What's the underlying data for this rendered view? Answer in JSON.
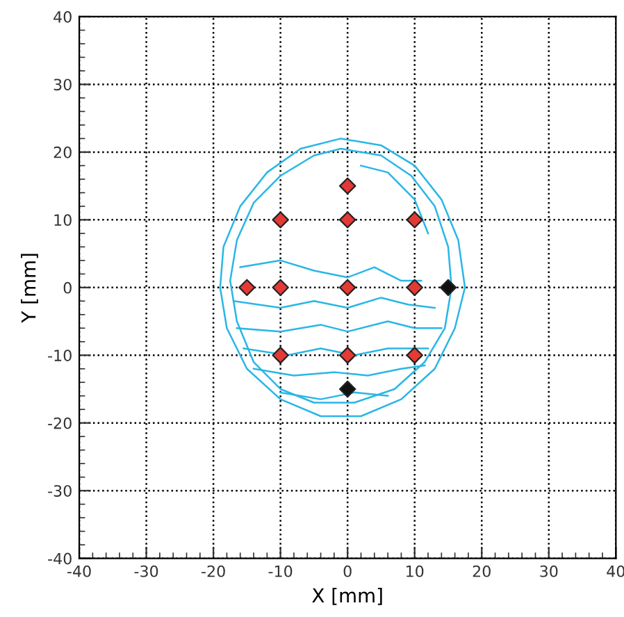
{
  "chart_data": {
    "type": "scatter",
    "xlabel": "X [mm]",
    "ylabel": "Y [mm]",
    "xlim": [
      -40,
      40
    ],
    "ylim": [
      -40,
      40
    ],
    "xticks": [
      -40,
      {
        "value": -38,
        "label": null
      },
      {
        "value": -36,
        "label": null
      },
      {
        "value": -34,
        "label": null
      },
      {
        "value": -32,
        "label": null
      },
      -30,
      {
        "value": -28,
        "label": null
      },
      {
        "value": -26,
        "label": null
      },
      {
        "value": -24,
        "label": null
      },
      {
        "value": -22,
        "label": null
      },
      -20,
      {
        "value": -18,
        "label": null
      },
      {
        "value": -16,
        "label": null
      },
      {
        "value": -14,
        "label": null
      },
      {
        "value": -12,
        "label": null
      },
      -10,
      {
        "value": -8,
        "label": null
      },
      {
        "value": -6,
        "label": null
      },
      {
        "value": -4,
        "label": null
      },
      {
        "value": -2,
        "label": null
      },
      0,
      {
        "value": 2,
        "label": null
      },
      {
        "value": 4,
        "label": null
      },
      {
        "value": 6,
        "label": null
      },
      {
        "value": 8,
        "label": null
      },
      10,
      {
        "value": 12,
        "label": null
      },
      {
        "value": 14,
        "label": null
      },
      {
        "value": 16,
        "label": null
      },
      {
        "value": 18,
        "label": null
      },
      20,
      {
        "value": 22,
        "label": null
      },
      {
        "value": 24,
        "label": null
      },
      {
        "value": 26,
        "label": null
      },
      {
        "value": 28,
        "label": null
      },
      30,
      {
        "value": 32,
        "label": null
      },
      {
        "value": 34,
        "label": null
      },
      {
        "value": 36,
        "label": null
      },
      {
        "value": 38,
        "label": null
      },
      40
    ],
    "yticks": [
      -40,
      {
        "value": -38,
        "label": null
      },
      {
        "value": -36,
        "label": null
      },
      {
        "value": -34,
        "label": null
      },
      {
        "value": -32,
        "label": null
      },
      -30,
      {
        "value": -28,
        "label": null
      },
      {
        "value": -26,
        "label": null
      },
      {
        "value": -24,
        "label": null
      },
      {
        "value": -22,
        "label": null
      },
      -20,
      {
        "value": -18,
        "label": null
      },
      {
        "value": -16,
        "label": null
      },
      {
        "value": -14,
        "label": null
      },
      {
        "value": -12,
        "label": null
      },
      -10,
      {
        "value": -8,
        "label": null
      },
      {
        "value": -6,
        "label": null
      },
      {
        "value": -4,
        "label": null
      },
      {
        "value": -2,
        "label": null
      },
      0,
      {
        "value": 2,
        "label": null
      },
      {
        "value": 4,
        "label": null
      },
      {
        "value": 6,
        "label": null
      },
      {
        "value": 8,
        "label": null
      },
      10,
      {
        "value": 12,
        "label": null
      },
      {
        "value": 14,
        "label": null
      },
      {
        "value": 16,
        "label": null
      },
      {
        "value": 18,
        "label": null
      },
      20,
      {
        "value": 22,
        "label": null
      },
      {
        "value": 24,
        "label": null
      },
      {
        "value": 26,
        "label": null
      },
      {
        "value": 28,
        "label": null
      },
      30,
      {
        "value": 32,
        "label": null
      },
      {
        "value": 34,
        "label": null
      },
      {
        "value": 36,
        "label": null
      },
      {
        "value": 38,
        "label": null
      },
      40
    ],
    "grid": true,
    "marker": "diamond",
    "series": [
      {
        "type": "line",
        "color": "#29b6e6",
        "marker": "none",
        "x": [
          -17,
          -10,
          -5,
          0,
          5,
          9,
          13
        ],
        "values": [
          -2,
          -3,
          -2,
          -3,
          -1.5,
          -2.5,
          -3
        ]
      },
      {
        "type": "line",
        "color": "#29b6e6",
        "marker": "none",
        "x": [
          -16.5,
          -10,
          -4,
          0,
          6,
          10,
          14
        ],
        "values": [
          -6,
          -6.5,
          -5.5,
          -6.5,
          -5,
          -6,
          -6
        ]
      },
      {
        "type": "line",
        "color": "#29b6e6",
        "marker": "none",
        "x": [
          -15.5,
          -9,
          -4,
          1,
          6,
          12
        ],
        "values": [
          -9,
          -10,
          -9,
          -10,
          -9,
          -9
        ]
      },
      {
        "type": "line",
        "color": "#29b6e6",
        "marker": "none",
        "x": [
          -14,
          -8,
          -2,
          3,
          8,
          11.5
        ],
        "values": [
          -12,
          -13,
          -12.5,
          -13,
          -12,
          -11.5
        ]
      },
      {
        "type": "line",
        "color": "#29b6e6",
        "marker": "none",
        "x": [
          -10,
          -4,
          1,
          6
        ],
        "values": [
          -15.5,
          -16.5,
          -15.5,
          -16
        ]
      },
      {
        "type": "line",
        "color": "#29b6e6",
        "marker": "none",
        "x": [
          -16,
          -10,
          -5,
          0,
          4,
          8,
          11
        ],
        "values": [
          3,
          4,
          2.5,
          1.5,
          3,
          1,
          1
        ]
      },
      {
        "type": "line",
        "color": "#29b6e6",
        "marker": "none",
        "x": [
          2,
          6,
          10,
          12
        ],
        "values": [
          18,
          17,
          13,
          8
        ]
      },
      {
        "color": "#e53935",
        "x": [
          0,
          -10,
          0,
          10,
          -15,
          -10,
          0,
          10,
          -10,
          0,
          10
        ],
        "values": [
          15,
          10,
          10,
          10,
          0,
          0,
          0,
          0,
          -10,
          -10,
          -10
        ]
      },
      {
        "color": "#111111",
        "x": [
          0,
          15
        ],
        "values": [
          -15,
          0
        ]
      }
    ]
  }
}
